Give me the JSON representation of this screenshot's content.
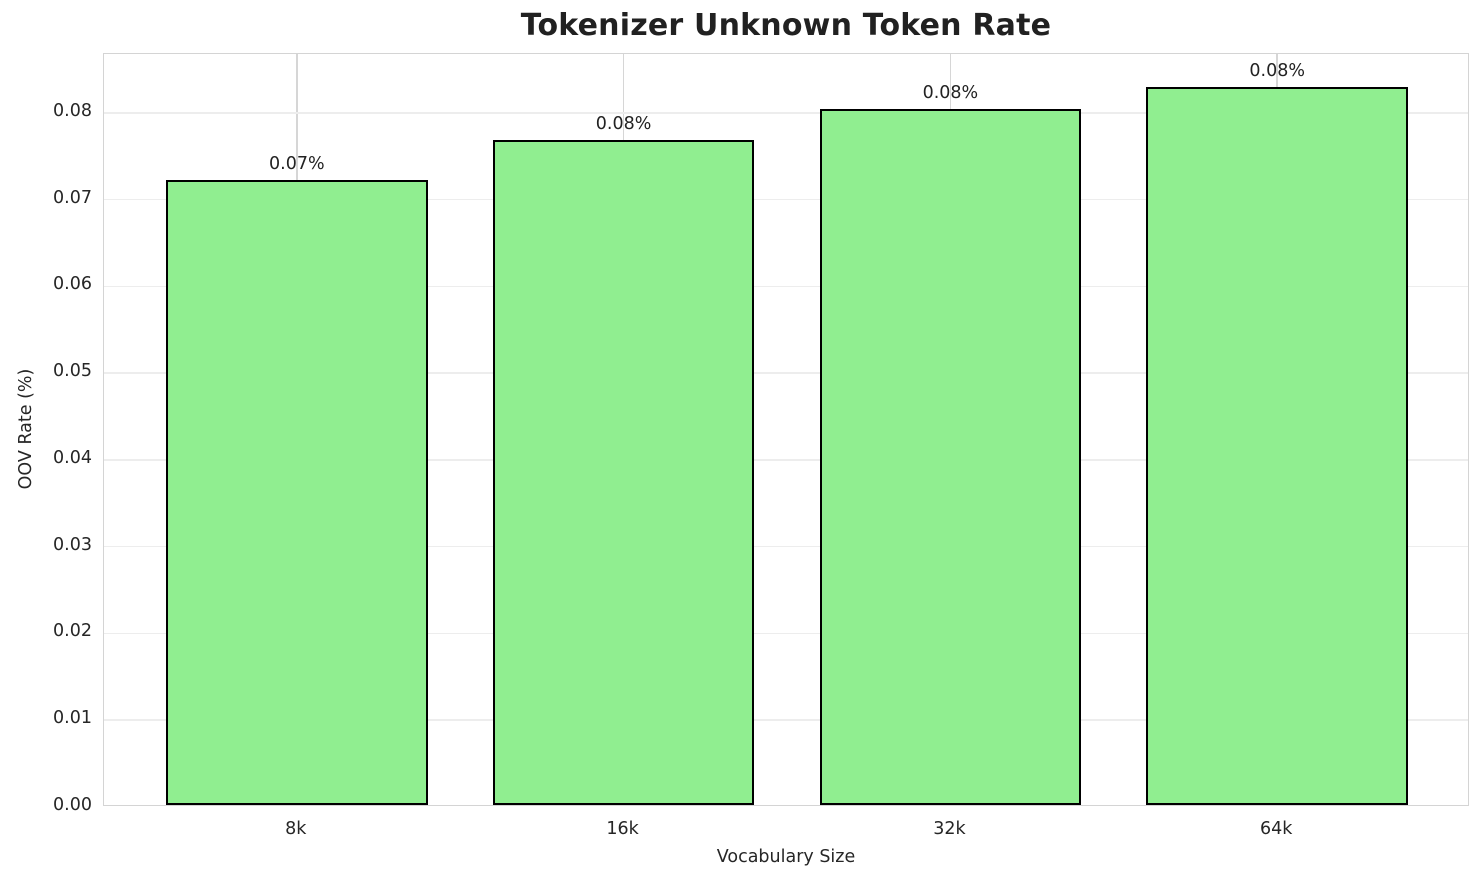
{
  "chart_data": {
    "type": "bar",
    "title": "Tokenizer Unknown Token Rate",
    "xlabel": "Vocabulary Size",
    "ylabel": "OOV Rate (%)",
    "categories": [
      "8k",
      "16k",
      "32k",
      "64k"
    ],
    "values": [
      0.072,
      0.0767,
      0.0802,
      0.0828
    ],
    "bar_labels": [
      "0.07%",
      "0.08%",
      "0.08%",
      "0.08%"
    ],
    "yticks": [
      0.0,
      0.01,
      0.02,
      0.03,
      0.04,
      0.05,
      0.06,
      0.07,
      0.08
    ],
    "ytick_labels": [
      "0.00",
      "0.01",
      "0.02",
      "0.03",
      "0.04",
      "0.05",
      "0.06",
      "0.07",
      "0.08"
    ],
    "ylim": [
      0,
      0.0868
    ],
    "grid": true,
    "legend": "none",
    "bar_color": "#90EE90",
    "bar_edge_color": "#000000"
  }
}
